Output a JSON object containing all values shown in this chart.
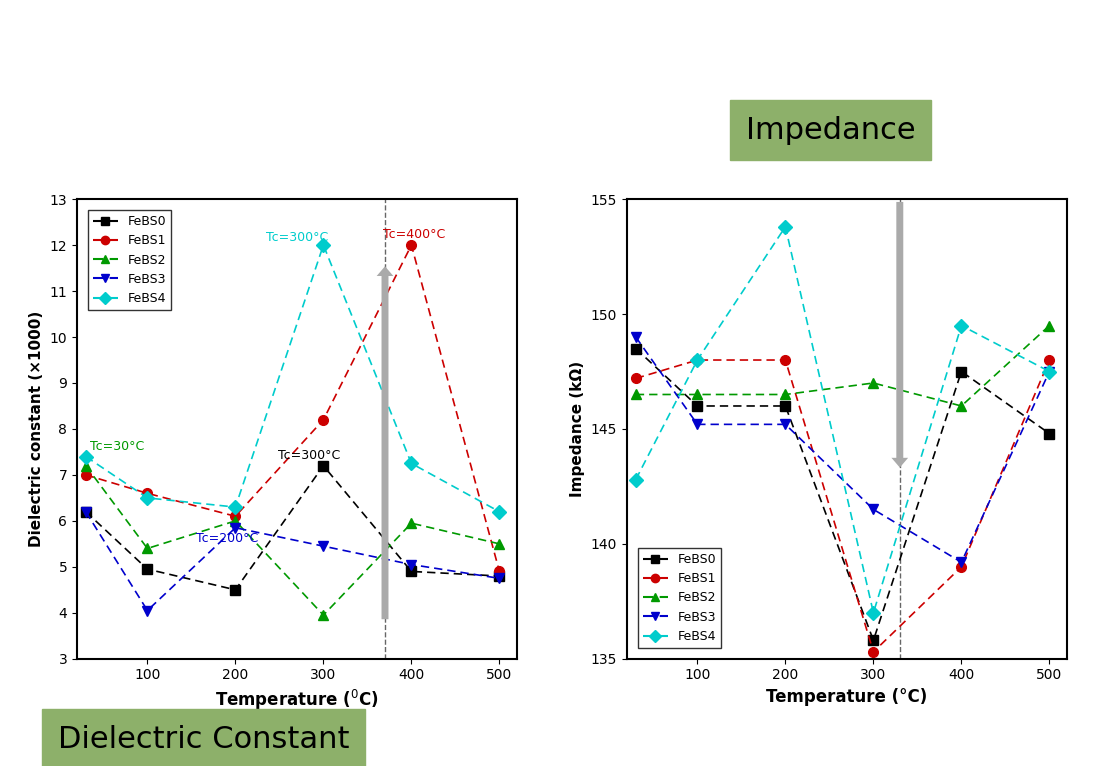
{
  "temp": [
    30,
    100,
    200,
    300,
    400,
    500
  ],
  "dielectric": {
    "FeBS0": [
      6.2,
      4.95,
      4.5,
      7.2,
      4.9,
      4.8
    ],
    "FeBS1": [
      7.0,
      6.6,
      6.1,
      8.2,
      12.0,
      4.9
    ],
    "FeBS2": [
      7.2,
      5.4,
      6.0,
      3.95,
      5.95,
      5.5
    ],
    "FeBS3": [
      6.2,
      4.05,
      5.85,
      5.45,
      5.05,
      4.75
    ],
    "FeBS4": [
      7.4,
      6.5,
      6.3,
      12.0,
      7.25,
      6.2
    ]
  },
  "impedance": {
    "FeBS0": [
      148.5,
      146.0,
      146.0,
      135.8,
      147.5,
      144.8
    ],
    "FeBS1": [
      147.2,
      148.0,
      148.0,
      135.3,
      139.0,
      148.0
    ],
    "FeBS2": [
      146.5,
      146.5,
      146.5,
      147.0,
      146.0,
      149.5
    ],
    "FeBS3": [
      149.0,
      145.2,
      145.2,
      141.5,
      139.2,
      147.5
    ],
    "FeBS4": [
      142.8,
      148.0,
      153.8,
      137.0,
      149.5,
      147.5
    ]
  },
  "colors": {
    "FeBS0": "#000000",
    "FeBS1": "#cc0000",
    "FeBS2": "#009900",
    "FeBS3": "#0000cc",
    "FeBS4": "#00cccc"
  },
  "markers": {
    "FeBS0": "s",
    "FeBS1": "o",
    "FeBS2": "^",
    "FeBS3": "v",
    "FeBS4": "D"
  },
  "dielectric_ylim": [
    3,
    13
  ],
  "dielectric_yticks": [
    3,
    4,
    5,
    6,
    7,
    8,
    9,
    10,
    11,
    12,
    13
  ],
  "impedance_ylim": [
    135,
    155
  ],
  "impedance_yticks": [
    135,
    140,
    145,
    150,
    155
  ],
  "xticks": [
    100,
    200,
    300,
    400,
    500
  ],
  "label_bg": "#8db06a",
  "arrow_color": "#aaaaaa"
}
